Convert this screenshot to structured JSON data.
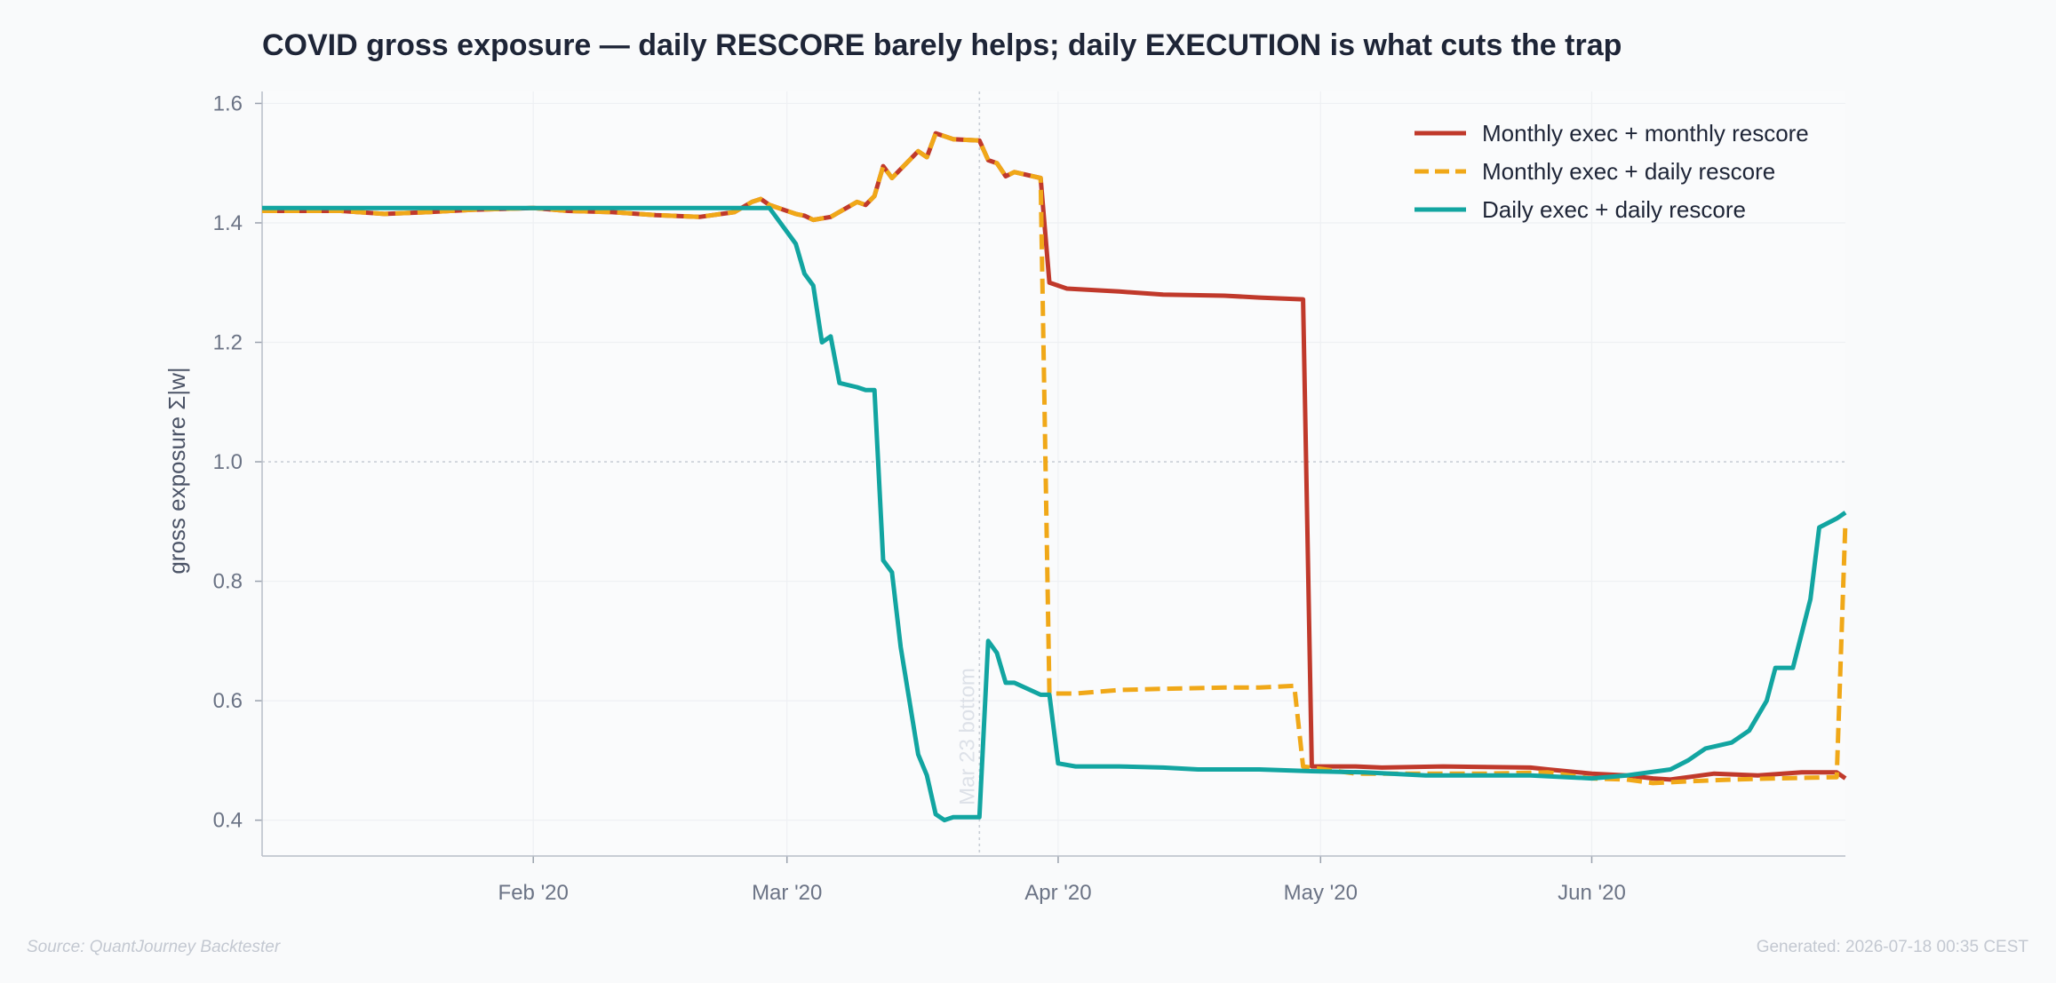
{
  "chart_data": {
    "type": "line",
    "title": "COVID gross exposure — daily RESCORE barely helps; daily EXECUTION is what cuts the trap",
    "ylabel": "gross exposure  Σ|w|",
    "xlabel": "",
    "xlim": [
      "2020-01-01",
      "2020-06-30"
    ],
    "ylim": [
      0.34,
      1.62
    ],
    "yticks": [
      0.4,
      0.6,
      0.8,
      1.0,
      1.2,
      1.4,
      1.6
    ],
    "ytick_labels": [
      "0.4",
      "0.6",
      "0.8",
      "1.0",
      "1.2",
      "1.4",
      "1.6"
    ],
    "xticks": [
      "2020-02-01",
      "2020-03-01",
      "2020-04-01",
      "2020-05-01",
      "2020-06-01"
    ],
    "xtick_labels": [
      "Feb '20",
      "Mar '20",
      "Apr '20",
      "May '20",
      "Jun '20"
    ],
    "grid": true,
    "legend_position": "top-right",
    "reference_line_y": 1.0,
    "annotation": {
      "date": "2020-03-23",
      "text": "Mar 23 bottom"
    },
    "series": [
      {
        "name": "Monthly exec + monthly rescore",
        "color": "#c0392b",
        "style": "solid",
        "points": [
          [
            "2020-01-01",
            1.42
          ],
          [
            "2020-01-10",
            1.42
          ],
          [
            "2020-01-15",
            1.415
          ],
          [
            "2020-01-20",
            1.418
          ],
          [
            "2020-01-25",
            1.422
          ],
          [
            "2020-02-01",
            1.425
          ],
          [
            "2020-02-05",
            1.42
          ],
          [
            "2020-02-10",
            1.418
          ],
          [
            "2020-02-15",
            1.413
          ],
          [
            "2020-02-20",
            1.41
          ],
          [
            "2020-02-24",
            1.418
          ],
          [
            "2020-02-26",
            1.435
          ],
          [
            "2020-02-27",
            1.44
          ],
          [
            "2020-02-28",
            1.43
          ],
          [
            "2020-03-02",
            1.415
          ],
          [
            "2020-03-03",
            1.412
          ],
          [
            "2020-03-04",
            1.405
          ],
          [
            "2020-03-06",
            1.41
          ],
          [
            "2020-03-09",
            1.435
          ],
          [
            "2020-03-10",
            1.43
          ],
          [
            "2020-03-11",
            1.445
          ],
          [
            "2020-03-12",
            1.495
          ],
          [
            "2020-03-13",
            1.475
          ],
          [
            "2020-03-16",
            1.52
          ],
          [
            "2020-03-17",
            1.51
          ],
          [
            "2020-03-18",
            1.55
          ],
          [
            "2020-03-19",
            1.545
          ],
          [
            "2020-03-20",
            1.54
          ],
          [
            "2020-03-23",
            1.538
          ],
          [
            "2020-03-24",
            1.505
          ],
          [
            "2020-03-25",
            1.5
          ],
          [
            "2020-03-26",
            1.478
          ],
          [
            "2020-03-27",
            1.485
          ],
          [
            "2020-03-30",
            1.475
          ],
          [
            "2020-03-31",
            1.3
          ],
          [
            "2020-04-02",
            1.29
          ],
          [
            "2020-04-08",
            1.285
          ],
          [
            "2020-04-13",
            1.28
          ],
          [
            "2020-04-20",
            1.278
          ],
          [
            "2020-04-24",
            1.275
          ],
          [
            "2020-04-29",
            1.272
          ],
          [
            "2020-04-30",
            0.49
          ],
          [
            "2020-05-05",
            0.49
          ],
          [
            "2020-05-08",
            0.488
          ],
          [
            "2020-05-15",
            0.49
          ],
          [
            "2020-05-25",
            0.488
          ],
          [
            "2020-05-27",
            0.485
          ],
          [
            "2020-06-01",
            0.478
          ],
          [
            "2020-06-05",
            0.475
          ],
          [
            "2020-06-08",
            0.47
          ],
          [
            "2020-06-10",
            0.468
          ],
          [
            "2020-06-15",
            0.478
          ],
          [
            "2020-06-20",
            0.475
          ],
          [
            "2020-06-25",
            0.48
          ],
          [
            "2020-06-29",
            0.48
          ],
          [
            "2020-06-30",
            0.47
          ]
        ]
      },
      {
        "name": "Monthly exec + daily rescore",
        "color": "#f0a818",
        "style": "dashed",
        "points": [
          [
            "2020-01-01",
            1.42
          ],
          [
            "2020-01-10",
            1.42
          ],
          [
            "2020-01-15",
            1.415
          ],
          [
            "2020-01-20",
            1.418
          ],
          [
            "2020-01-25",
            1.422
          ],
          [
            "2020-02-01",
            1.425
          ],
          [
            "2020-02-05",
            1.42
          ],
          [
            "2020-02-10",
            1.418
          ],
          [
            "2020-02-15",
            1.413
          ],
          [
            "2020-02-20",
            1.41
          ],
          [
            "2020-02-24",
            1.418
          ],
          [
            "2020-02-26",
            1.435
          ],
          [
            "2020-02-27",
            1.44
          ],
          [
            "2020-02-28",
            1.43
          ],
          [
            "2020-03-02",
            1.415
          ],
          [
            "2020-03-03",
            1.412
          ],
          [
            "2020-03-04",
            1.405
          ],
          [
            "2020-03-06",
            1.41
          ],
          [
            "2020-03-09",
            1.435
          ],
          [
            "2020-03-10",
            1.43
          ],
          [
            "2020-03-11",
            1.445
          ],
          [
            "2020-03-12",
            1.495
          ],
          [
            "2020-03-13",
            1.475
          ],
          [
            "2020-03-16",
            1.52
          ],
          [
            "2020-03-17",
            1.51
          ],
          [
            "2020-03-18",
            1.55
          ],
          [
            "2020-03-19",
            1.545
          ],
          [
            "2020-03-20",
            1.54
          ],
          [
            "2020-03-23",
            1.538
          ],
          [
            "2020-03-24",
            1.505
          ],
          [
            "2020-03-25",
            1.5
          ],
          [
            "2020-03-26",
            1.478
          ],
          [
            "2020-03-27",
            1.485
          ],
          [
            "2020-03-30",
            1.475
          ],
          [
            "2020-03-31",
            0.612
          ],
          [
            "2020-04-03",
            0.612
          ],
          [
            "2020-04-08",
            0.618
          ],
          [
            "2020-04-13",
            0.62
          ],
          [
            "2020-04-20",
            0.622
          ],
          [
            "2020-04-24",
            0.622
          ],
          [
            "2020-04-28",
            0.625
          ],
          [
            "2020-04-29",
            0.49
          ],
          [
            "2020-05-05",
            0.478
          ],
          [
            "2020-05-10",
            0.478
          ],
          [
            "2020-05-20",
            0.478
          ],
          [
            "2020-05-27",
            0.48
          ],
          [
            "2020-06-01",
            0.47
          ],
          [
            "2020-06-05",
            0.468
          ],
          [
            "2020-06-08",
            0.462
          ],
          [
            "2020-06-12",
            0.465
          ],
          [
            "2020-06-17",
            0.468
          ],
          [
            "2020-06-22",
            0.47
          ],
          [
            "2020-06-29",
            0.472
          ],
          [
            "2020-06-30",
            0.9
          ]
        ]
      },
      {
        "name": "Daily exec + daily rescore",
        "color": "#12a5a1",
        "style": "solid",
        "points": [
          [
            "2020-01-01",
            1.425
          ],
          [
            "2020-01-15",
            1.425
          ],
          [
            "2020-02-01",
            1.425
          ],
          [
            "2020-02-15",
            1.425
          ],
          [
            "2020-02-28",
            1.425
          ],
          [
            "2020-03-02",
            1.365
          ],
          [
            "2020-03-03",
            1.315
          ],
          [
            "2020-03-04",
            1.295
          ],
          [
            "2020-03-05",
            1.2
          ],
          [
            "2020-03-06",
            1.21
          ],
          [
            "2020-03-07",
            1.132
          ],
          [
            "2020-03-09",
            1.125
          ],
          [
            "2020-03-10",
            1.12
          ],
          [
            "2020-03-11",
            1.12
          ],
          [
            "2020-03-12",
            0.835
          ],
          [
            "2020-03-13",
            0.815
          ],
          [
            "2020-03-14",
            0.69
          ],
          [
            "2020-03-16",
            0.51
          ],
          [
            "2020-03-17",
            0.475
          ],
          [
            "2020-03-18",
            0.41
          ],
          [
            "2020-03-19",
            0.4
          ],
          [
            "2020-03-20",
            0.405
          ],
          [
            "2020-03-23",
            0.405
          ],
          [
            "2020-03-24",
            0.7
          ],
          [
            "2020-03-25",
            0.68
          ],
          [
            "2020-03-26",
            0.63
          ],
          [
            "2020-03-27",
            0.63
          ],
          [
            "2020-03-30",
            0.61
          ],
          [
            "2020-03-31",
            0.61
          ],
          [
            "2020-04-01",
            0.495
          ],
          [
            "2020-04-03",
            0.49
          ],
          [
            "2020-04-08",
            0.49
          ],
          [
            "2020-04-13",
            0.488
          ],
          [
            "2020-04-17",
            0.485
          ],
          [
            "2020-04-24",
            0.485
          ],
          [
            "2020-04-30",
            0.482
          ],
          [
            "2020-05-06",
            0.48
          ],
          [
            "2020-05-13",
            0.475
          ],
          [
            "2020-05-20",
            0.475
          ],
          [
            "2020-05-25",
            0.475
          ],
          [
            "2020-06-01",
            0.47
          ],
          [
            "2020-06-05",
            0.475
          ],
          [
            "2020-06-10",
            0.485
          ],
          [
            "2020-06-12",
            0.5
          ],
          [
            "2020-06-14",
            0.52
          ],
          [
            "2020-06-17",
            0.53
          ],
          [
            "2020-06-19",
            0.55
          ],
          [
            "2020-06-21",
            0.6
          ],
          [
            "2020-06-22",
            0.655
          ],
          [
            "2020-06-24",
            0.655
          ],
          [
            "2020-06-26",
            0.77
          ],
          [
            "2020-06-27",
            0.89
          ],
          [
            "2020-06-29",
            0.905
          ],
          [
            "2020-06-30",
            0.915
          ]
        ]
      }
    ]
  },
  "footer": {
    "source": "Source: QuantJourney Backtester",
    "generated": "Generated: 2026-07-18 00:35 CEST"
  }
}
